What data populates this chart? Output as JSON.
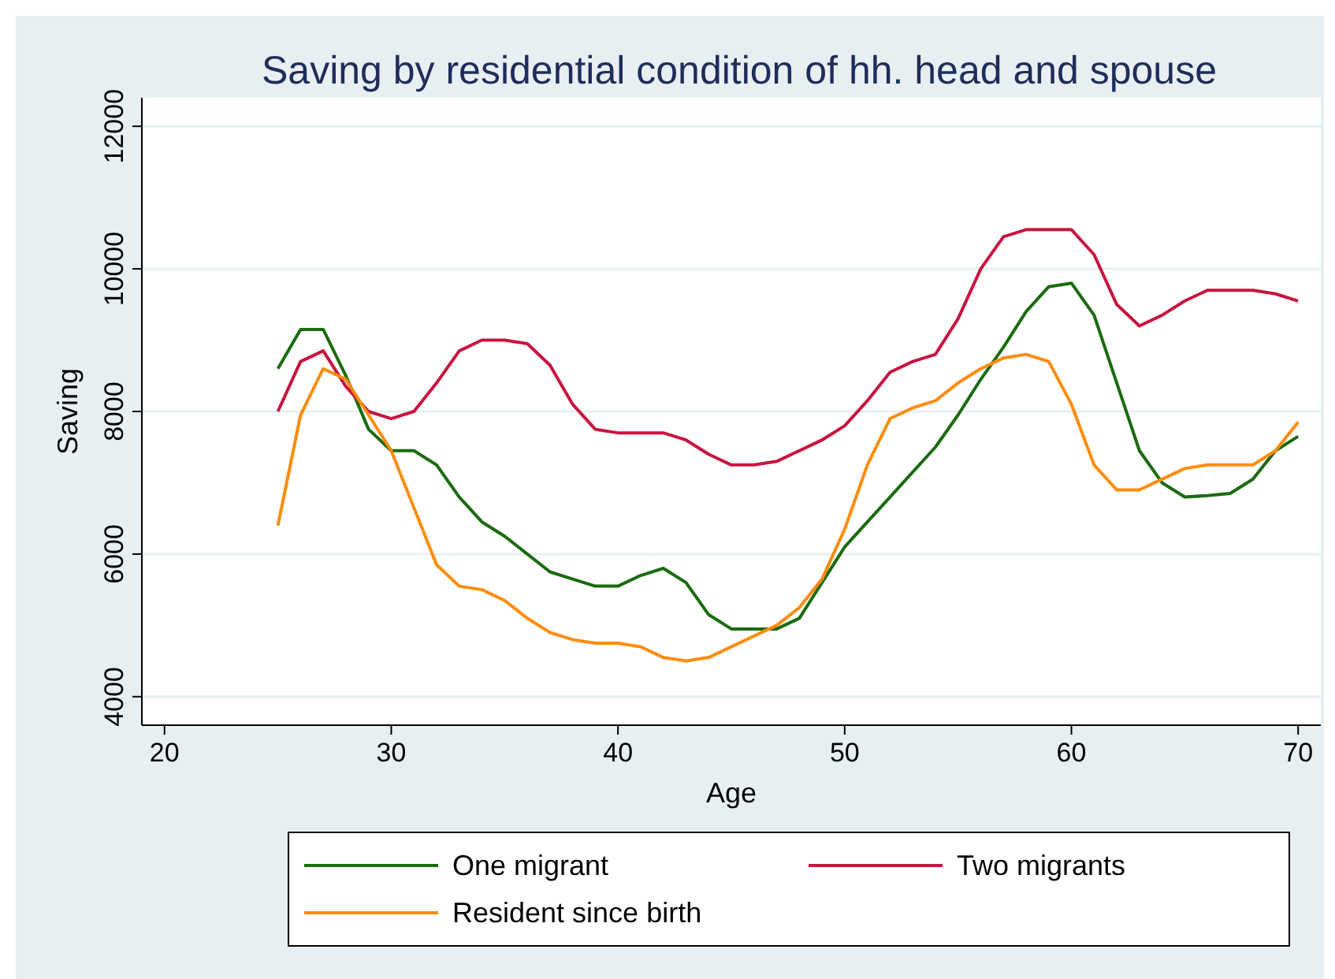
{
  "chart_data": {
    "type": "line",
    "title": "Saving by residential condition of hh. head and spouse",
    "xlabel": "Age",
    "ylabel": "Saving",
    "x": [
      25,
      26,
      27,
      28,
      29,
      30,
      31,
      32,
      33,
      34,
      35,
      36,
      37,
      38,
      39,
      40,
      41,
      42,
      43,
      44,
      45,
      46,
      47,
      48,
      49,
      50,
      51,
      52,
      53,
      54,
      55,
      56,
      57,
      58,
      59,
      60,
      61,
      62,
      63,
      64,
      65,
      66,
      67,
      68,
      69,
      70
    ],
    "series": [
      {
        "name": "One migrant",
        "color": "#1a6b0f",
        "values": [
          8600,
          9150,
          9150,
          8500,
          7750,
          7450,
          7450,
          7250,
          6800,
          6450,
          6250,
          6000,
          5750,
          5650,
          5550,
          5550,
          5700,
          5800,
          5600,
          5150,
          4950,
          4950,
          4950,
          5100,
          5600,
          6100,
          6450,
          6800,
          7150,
          7500,
          7950,
          8450,
          8900,
          9400,
          9750,
          9800,
          9350,
          8400,
          7450,
          7000,
          6800,
          6820,
          6850,
          7050,
          7450,
          7650
        ]
      },
      {
        "name": "Two migrants",
        "color": "#c8143f",
        "values": [
          8000,
          8700,
          8850,
          8350,
          8000,
          7900,
          8000,
          8400,
          8850,
          9000,
          9000,
          8950,
          8650,
          8100,
          7750,
          7700,
          7700,
          7700,
          7600,
          7400,
          7250,
          7250,
          7300,
          7450,
          7600,
          7800,
          8150,
          8550,
          8700,
          8800,
          9300,
          10000,
          10450,
          10550,
          10550,
          10550,
          10200,
          9500,
          9200,
          9350,
          9550,
          9700,
          9700,
          9700,
          9650,
          9550
        ]
      },
      {
        "name": "Resident since birth",
        "color": "#ff8c0a",
        "values": [
          6400,
          7950,
          8600,
          8450,
          7950,
          7450,
          6650,
          5850,
          5550,
          5500,
          5350,
          5100,
          4900,
          4800,
          4750,
          4750,
          4700,
          4550,
          4500,
          4550,
          4700,
          4850,
          5000,
          5250,
          5650,
          6350,
          7250,
          7900,
          8050,
          8150,
          8400,
          8600,
          8750,
          8800,
          8700,
          8100,
          7250,
          6900,
          6900,
          7050,
          7200,
          7250,
          7250,
          7250,
          7450,
          7850
        ]
      }
    ],
    "xlim": [
      19,
      71
    ],
    "ylim": [
      3600,
      12400
    ],
    "xticks": [
      20,
      30,
      40,
      50,
      60,
      70
    ],
    "yticks": [
      4000,
      6000,
      8000,
      10000,
      12000
    ],
    "grid": "y",
    "legend": "bottom",
    "marker": "none",
    "line_style": "solid"
  }
}
